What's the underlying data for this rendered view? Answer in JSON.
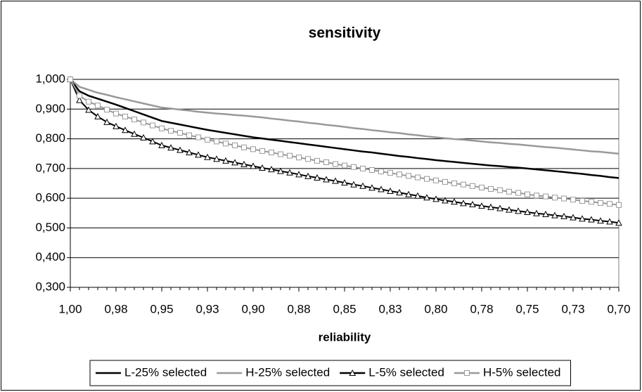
{
  "chart_data": {
    "type": "line",
    "title": "sensitivity",
    "x_label": "reliability",
    "categories": [
      "1,00",
      null,
      null,
      null,
      null,
      "0,98",
      null,
      null,
      null,
      null,
      "0,95",
      null,
      null,
      null,
      null,
      "0,93",
      null,
      null,
      null,
      null,
      "0,90",
      null,
      null,
      null,
      null,
      "0,88",
      null,
      null,
      null,
      null,
      "0,85",
      null,
      null,
      null,
      null,
      "0,83",
      null,
      null,
      null,
      null,
      "0,80",
      null,
      null,
      null,
      null,
      "0,78",
      null,
      null,
      null,
      null,
      "0,75",
      null,
      null,
      null,
      null,
      "0,73",
      null,
      null,
      null,
      null,
      "0,70"
    ],
    "ylim": [
      0.3,
      1.0
    ],
    "yticks": [
      {
        "value": 0.3,
        "label": "0,300"
      },
      {
        "value": 0.4,
        "label": "0,400"
      },
      {
        "value": 0.5,
        "label": "0,500"
      },
      {
        "value": 0.6,
        "label": "0,600"
      },
      {
        "value": 0.7,
        "label": "0,700"
      },
      {
        "value": 0.8,
        "label": "0,800"
      },
      {
        "value": 0.9,
        "label": "0,900"
      },
      {
        "value": 1.0,
        "label": "1,000"
      }
    ],
    "grid": true,
    "legend": "bottom",
    "series": [
      {
        "name": "L-25% selected",
        "color": "#000000",
        "marker": "none",
        "values": [
          1.0,
          0.96,
          0.945,
          0.935,
          0.925,
          0.915,
          0.904,
          0.893,
          0.882,
          0.871,
          0.86,
          0.854,
          0.848,
          0.842,
          0.836,
          0.83,
          0.825,
          0.82,
          0.815,
          0.81,
          0.805,
          0.801,
          0.797,
          0.793,
          0.789,
          0.785,
          0.781,
          0.777,
          0.773,
          0.769,
          0.765,
          0.761,
          0.757,
          0.754,
          0.75,
          0.746,
          0.742,
          0.739,
          0.735,
          0.732,
          0.728,
          0.725,
          0.722,
          0.719,
          0.716,
          0.713,
          0.71,
          0.708,
          0.705,
          0.703,
          0.7,
          0.697,
          0.694,
          0.691,
          0.688,
          0.685,
          0.682,
          0.678,
          0.675,
          0.671,
          0.668
        ]
      },
      {
        "name": "H-25% selected",
        "color": "#999999",
        "marker": "none",
        "values": [
          1.0,
          0.975,
          0.965,
          0.955,
          0.948,
          0.94,
          0.933,
          0.926,
          0.919,
          0.912,
          0.905,
          0.902,
          0.898,
          0.895,
          0.891,
          0.888,
          0.885,
          0.883,
          0.88,
          0.878,
          0.875,
          0.872,
          0.868,
          0.865,
          0.861,
          0.858,
          0.854,
          0.851,
          0.847,
          0.844,
          0.84,
          0.836,
          0.833,
          0.829,
          0.826,
          0.822,
          0.819,
          0.815,
          0.812,
          0.808,
          0.805,
          0.802,
          0.799,
          0.797,
          0.794,
          0.791,
          0.788,
          0.786,
          0.783,
          0.781,
          0.778,
          0.775,
          0.772,
          0.77,
          0.767,
          0.764,
          0.761,
          0.758,
          0.756,
          0.753,
          0.75
        ]
      },
      {
        "name": "L-5% selected",
        "color": "#000000",
        "marker": "triangle",
        "values": [
          1.0,
          0.93,
          0.897,
          0.875,
          0.856,
          0.842,
          0.829,
          0.816,
          0.804,
          0.791,
          0.778,
          0.77,
          0.762,
          0.754,
          0.746,
          0.738,
          0.732,
          0.726,
          0.72,
          0.714,
          0.708,
          0.702,
          0.697,
          0.691,
          0.686,
          0.68,
          0.674,
          0.669,
          0.663,
          0.658,
          0.652,
          0.646,
          0.641,
          0.635,
          0.63,
          0.624,
          0.619,
          0.613,
          0.608,
          0.602,
          0.597,
          0.592,
          0.588,
          0.583,
          0.579,
          0.574,
          0.57,
          0.566,
          0.561,
          0.557,
          0.553,
          0.549,
          0.546,
          0.542,
          0.539,
          0.535,
          0.531,
          0.528,
          0.524,
          0.521,
          0.517
        ]
      },
      {
        "name": "H-5% selected",
        "color": "#999999",
        "marker": "square",
        "values": [
          1.0,
          0.945,
          0.925,
          0.912,
          0.898,
          0.885,
          0.875,
          0.865,
          0.855,
          0.845,
          0.835,
          0.827,
          0.82,
          0.812,
          0.805,
          0.797,
          0.791,
          0.784,
          0.778,
          0.771,
          0.765,
          0.759,
          0.754,
          0.748,
          0.743,
          0.737,
          0.732,
          0.726,
          0.721,
          0.715,
          0.71,
          0.705,
          0.7,
          0.695,
          0.69,
          0.685,
          0.68,
          0.675,
          0.67,
          0.665,
          0.66,
          0.655,
          0.65,
          0.646,
          0.641,
          0.636,
          0.631,
          0.627,
          0.622,
          0.618,
          0.613,
          0.609,
          0.606,
          0.602,
          0.599,
          0.595,
          0.591,
          0.588,
          0.584,
          0.581,
          0.577
        ]
      }
    ]
  }
}
